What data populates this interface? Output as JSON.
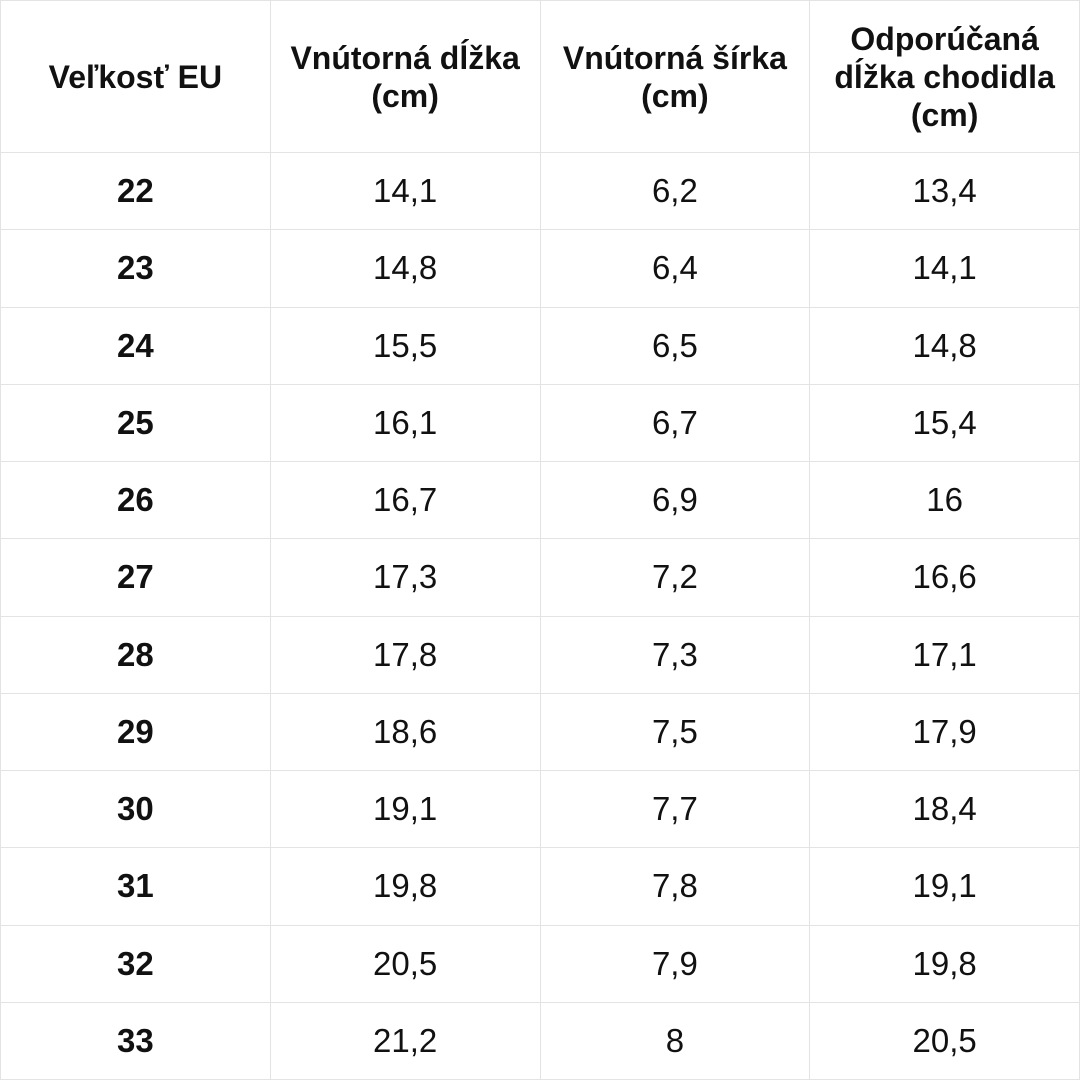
{
  "table": {
    "header": [
      "Veľkosť EU",
      "Vnútorná dĺžka (cm)",
      "Vnútorná šírka (cm)",
      "Odporúčaná dĺžka chodidla (cm)"
    ],
    "rows": [
      [
        "22",
        "14,1",
        "6,2",
        "13,4"
      ],
      [
        "23",
        "14,8",
        "6,4",
        "14,1"
      ],
      [
        "24",
        "15,5",
        "6,5",
        "14,8"
      ],
      [
        "25",
        "16,1",
        "6,7",
        "15,4"
      ],
      [
        "26",
        "16,7",
        "6,9",
        "16"
      ],
      [
        "27",
        "17,3",
        "7,2",
        "16,6"
      ],
      [
        "28",
        "17,8",
        "7,3",
        "17,1"
      ],
      [
        "29",
        "18,6",
        "7,5",
        "17,9"
      ],
      [
        "30",
        "19,1",
        "7,7",
        "18,4"
      ],
      [
        "31",
        "19,8",
        "7,8",
        "19,1"
      ],
      [
        "32",
        "20,5",
        "7,9",
        "19,8"
      ],
      [
        "33",
        "21,2",
        "8",
        "20,5"
      ]
    ]
  }
}
